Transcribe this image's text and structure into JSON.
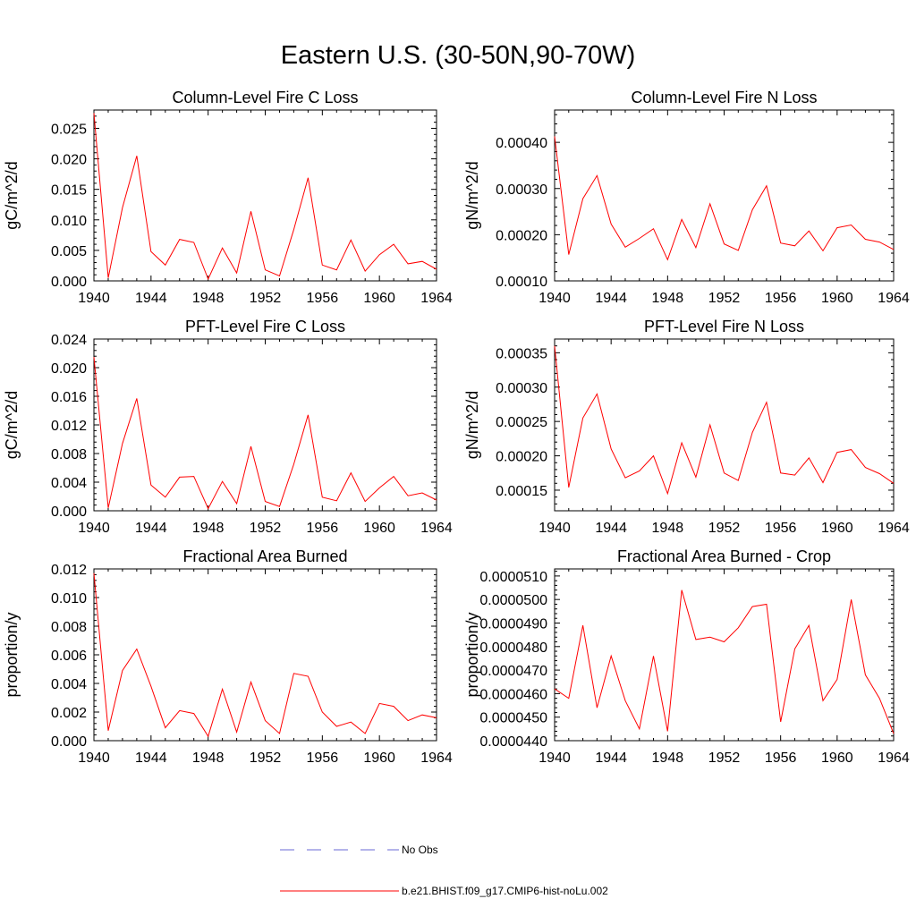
{
  "title": "Eastern U.S. (30-50N,90-70W)",
  "legend": {
    "items": [
      {
        "label": "No Obs",
        "color": "#6a6ad6",
        "style": "dashed"
      },
      {
        "label": "b.e21.BHIST.f09_g17.CMIP6-hist-noLu.002",
        "color": "#ff0000",
        "style": "solid"
      }
    ]
  },
  "chart_data": [
    {
      "type": "line",
      "title": "Column-Level Fire C Loss",
      "xlabel": "",
      "ylabel": "gC/m^2/d",
      "xlim": [
        1940,
        1964
      ],
      "ylim": [
        0,
        0.028
      ],
      "xticks": [
        "1940",
        "1944",
        "1948",
        "1952",
        "1956",
        "1960",
        "1964"
      ],
      "yticks": [
        "0.000",
        "0.005",
        "0.010",
        "0.015",
        "0.020",
        "0.025"
      ],
      "x": [
        1940,
        1941,
        1942,
        1943,
        1944,
        1945,
        1946,
        1947,
        1948,
        1949,
        1950,
        1951,
        1952,
        1953,
        1954,
        1955,
        1956,
        1957,
        1958,
        1959,
        1960,
        1961,
        1962,
        1963,
        1964
      ],
      "series": [
        {
          "name": "b.e21.BHIST.f09_g17.CMIP6-hist-noLu.002",
          "color": "#ff0000",
          "values": [
            0.0275,
            0.0005,
            0.012,
            0.0205,
            0.0048,
            0.0026,
            0.0068,
            0.0063,
            0.0003,
            0.0054,
            0.0013,
            0.0114,
            0.0018,
            0.0008,
            0.0084,
            0.0169,
            0.0026,
            0.0018,
            0.0067,
            0.0016,
            0.0043,
            0.006,
            0.0028,
            0.0032,
            0.0019
          ]
        }
      ]
    },
    {
      "type": "line",
      "title": "Column-Level Fire N Loss",
      "xlabel": "",
      "ylabel": "gN/m^2/d",
      "xlim": [
        1940,
        1964
      ],
      "ylim": [
        0.0001,
        0.00047
      ],
      "xticks": [
        "1940",
        "1944",
        "1948",
        "1952",
        "1956",
        "1960",
        "1964"
      ],
      "yticks": [
        "0.00010",
        "0.00020",
        "0.00030",
        "0.00040"
      ],
      "x": [
        1940,
        1941,
        1942,
        1943,
        1944,
        1945,
        1946,
        1947,
        1948,
        1949,
        1950,
        1951,
        1952,
        1953,
        1954,
        1955,
        1956,
        1957,
        1958,
        1959,
        1960,
        1961,
        1962,
        1963,
        1964
      ],
      "series": [
        {
          "name": "b.e21.BHIST.f09_g17.CMIP6-hist-noLu.002",
          "color": "#ff0000",
          "values": [
            0.000413,
            0.000157,
            0.000278,
            0.000328,
            0.000223,
            0.000173,
            0.000192,
            0.000213,
            0.000146,
            0.000233,
            0.000172,
            0.000267,
            0.00018,
            0.000166,
            0.000254,
            0.000306,
            0.000182,
            0.000176,
            0.000208,
            0.000165,
            0.000215,
            0.000221,
            0.00019,
            0.000184,
            0.000168
          ]
        }
      ]
    },
    {
      "type": "line",
      "title": "PFT-Level Fire C Loss",
      "xlabel": "",
      "ylabel": "gC/m^2/d",
      "xlim": [
        1940,
        1964
      ],
      "ylim": [
        0,
        0.024
      ],
      "xticks": [
        "1940",
        "1944",
        "1948",
        "1952",
        "1956",
        "1960",
        "1964"
      ],
      "yticks": [
        "0.000",
        "0.004",
        "0.008",
        "0.012",
        "0.016",
        "0.020",
        "0.024"
      ],
      "x": [
        1940,
        1941,
        1942,
        1943,
        1944,
        1945,
        1946,
        1947,
        1948,
        1949,
        1950,
        1951,
        1952,
        1953,
        1954,
        1955,
        1956,
        1957,
        1958,
        1959,
        1960,
        1961,
        1962,
        1963,
        1964
      ],
      "series": [
        {
          "name": "b.e21.BHIST.f09_g17.CMIP6-hist-noLu.002",
          "color": "#ff0000",
          "values": [
            0.0215,
            0.0004,
            0.0094,
            0.0157,
            0.0036,
            0.0019,
            0.0047,
            0.0048,
            0.0003,
            0.0041,
            0.001,
            0.009,
            0.0013,
            0.0006,
            0.0065,
            0.0134,
            0.0019,
            0.0014,
            0.0053,
            0.0013,
            0.0032,
            0.0048,
            0.0021,
            0.0025,
            0.0015
          ]
        }
      ]
    },
    {
      "type": "line",
      "title": "PFT-Level Fire N Loss",
      "xlabel": "",
      "ylabel": "gN/m^2/d",
      "xlim": [
        1940,
        1964
      ],
      "ylim": [
        0.00012,
        0.00037
      ],
      "xticks": [
        "1940",
        "1944",
        "1948",
        "1952",
        "1956",
        "1960",
        "1964"
      ],
      "yticks": [
        "0.00015",
        "0.00020",
        "0.00025",
        "0.00030",
        "0.00035"
      ],
      "x": [
        1940,
        1941,
        1942,
        1943,
        1944,
        1945,
        1946,
        1947,
        1948,
        1949,
        1950,
        1951,
        1952,
        1953,
        1954,
        1955,
        1956,
        1957,
        1958,
        1959,
        1960,
        1961,
        1962,
        1963,
        1964
      ],
      "series": [
        {
          "name": "b.e21.BHIST.f09_g17.CMIP6-hist-noLu.002",
          "color": "#ff0000",
          "values": [
            0.00036,
            0.000154,
            0.000255,
            0.00029,
            0.00021,
            0.000168,
            0.000178,
            0.0002,
            0.000145,
            0.000219,
            0.000169,
            0.000245,
            0.000175,
            0.000164,
            0.000234,
            0.000278,
            0.000175,
            0.000172,
            0.000197,
            0.000161,
            0.000205,
            0.000209,
            0.000183,
            0.000174,
            0.00016
          ]
        }
      ]
    },
    {
      "type": "line",
      "title": "Fractional Area Burned",
      "xlabel": "",
      "ylabel": "proportion/y",
      "xlim": [
        1940,
        1964
      ],
      "ylim": [
        0,
        0.012
      ],
      "xticks": [
        "1940",
        "1944",
        "1948",
        "1952",
        "1956",
        "1960",
        "1964"
      ],
      "yticks": [
        "0.000",
        "0.002",
        "0.004",
        "0.006",
        "0.008",
        "0.010",
        "0.012"
      ],
      "x": [
        1940,
        1941,
        1942,
        1943,
        1944,
        1945,
        1946,
        1947,
        1948,
        1949,
        1950,
        1951,
        1952,
        1953,
        1954,
        1955,
        1956,
        1957,
        1958,
        1959,
        1960,
        1961,
        1962,
        1963,
        1964
      ],
      "series": [
        {
          "name": "b.e21.BHIST.f09_g17.CMIP6-hist-noLu.002",
          "color": "#ff0000",
          "values": [
            0.0117,
            0.0007,
            0.0049,
            0.0064,
            0.0038,
            0.0009,
            0.0021,
            0.0019,
            0.0003,
            0.0036,
            0.0006,
            0.0041,
            0.0014,
            0.0005,
            0.0047,
            0.0045,
            0.002,
            0.001,
            0.0013,
            0.0005,
            0.0026,
            0.0024,
            0.0014,
            0.0018,
            0.0016
          ]
        }
      ]
    },
    {
      "type": "line",
      "title": "Fractional Area Burned - Crop",
      "xlabel": "",
      "ylabel": "proportion/y",
      "xlim": [
        1940,
        1964
      ],
      "ylim": [
        4.4e-05,
        5.13e-05
      ],
      "xticks": [
        "1940",
        "1944",
        "1948",
        "1952",
        "1956",
        "1960",
        "1964"
      ],
      "yticks": [
        "0.0000440",
        "0.0000450",
        "0.0000460",
        "0.0000470",
        "0.0000480",
        "0.0000490",
        "0.0000500",
        "0.0000510"
      ],
      "x": [
        1940,
        1941,
        1942,
        1943,
        1944,
        1945,
        1946,
        1947,
        1948,
        1949,
        1950,
        1951,
        1952,
        1953,
        1954,
        1955,
        1956,
        1957,
        1958,
        1959,
        1960,
        1961,
        1962,
        1963,
        1964
      ],
      "series": [
        {
          "name": "b.e21.BHIST.f09_g17.CMIP6-hist-noLu.002",
          "color": "#ff0000",
          "values": [
            4.62e-05,
            4.58e-05,
            4.89e-05,
            4.54e-05,
            4.76e-05,
            4.57e-05,
            4.45e-05,
            4.76e-05,
            4.44e-05,
            5.04e-05,
            4.83e-05,
            4.84e-05,
            4.82e-05,
            4.88e-05,
            4.97e-05,
            4.98e-05,
            4.48e-05,
            4.79e-05,
            4.89e-05,
            4.57e-05,
            4.66e-05,
            5e-05,
            4.68e-05,
            4.58e-05,
            4.43e-05
          ]
        }
      ]
    }
  ]
}
